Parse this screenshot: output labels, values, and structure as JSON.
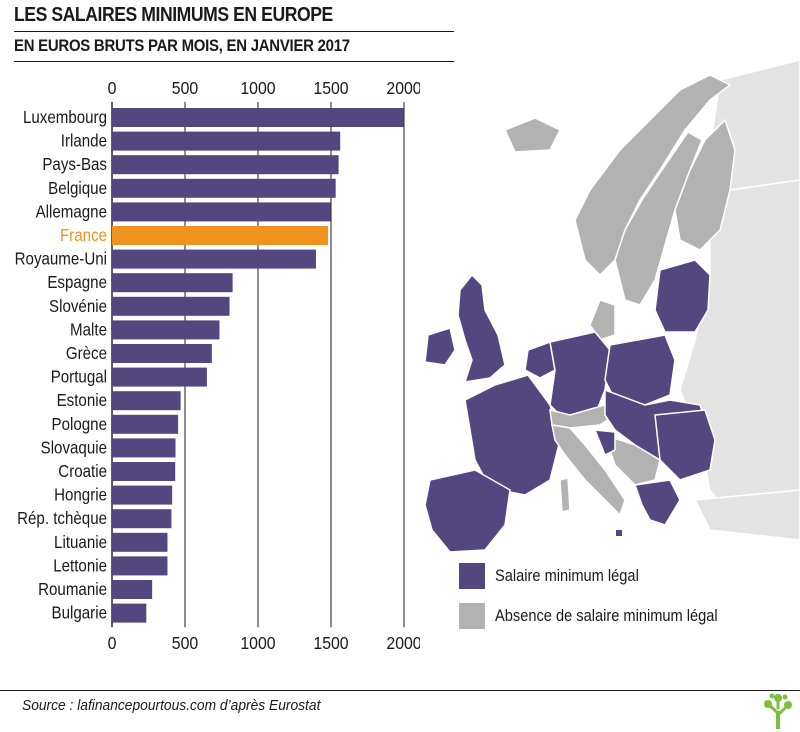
{
  "header": {
    "title": "LES SALAIRES MINIMUMS EN EUROPE",
    "subtitle": "EN EUROS BRUTS PAR MOIS, EN JANVIER 2017"
  },
  "chart_data": {
    "type": "bar",
    "orientation": "horizontal",
    "title": "LES SALAIRES MINIMUMS EN EUROPE",
    "subtitle": "EN EUROS BRUTS PAR MOIS, EN JANVIER 2017",
    "categories": [
      "Luxembourg",
      "Irlande",
      "Pays-Bas",
      "Belgique",
      "Allemagne",
      "France",
      "Royaume-Uni",
      "Espagne",
      "Slovénie",
      "Malte",
      "Grèce",
      "Portugal",
      "Estonie",
      "Pologne",
      "Slovaquie",
      "Croatie",
      "Hongrie",
      "Rép. tchèque",
      "Lituanie",
      "Lettonie",
      "Roumanie",
      "Bulgarie"
    ],
    "values": [
      1999,
      1563,
      1552,
      1532,
      1498,
      1480,
      1397,
      826,
      805,
      736,
      684,
      650,
      470,
      453,
      435,
      433,
      412,
      407,
      380,
      380,
      275,
      235
    ],
    "highlight": "France",
    "xlim": [
      0,
      2000
    ],
    "xticks": [
      "0",
      "500",
      "1000",
      "1500",
      "2000"
    ],
    "grid": true
  },
  "legend": {
    "items": [
      {
        "label": "Salaire minimum légal",
        "color": "#54477f"
      },
      {
        "label": "Absence de salaire minimum légal",
        "color": "#b2b2b2"
      }
    ]
  },
  "colors": {
    "bar": "#54477f",
    "highlight": "#f0931e",
    "no_min_wage": "#b2b2b2",
    "sea": "#ffffff",
    "other_land": "#e3e3e3",
    "logo": "#7cbf3c"
  },
  "footer": {
    "source": "Source : lafinancepourtous.com d’après Eurostat"
  }
}
